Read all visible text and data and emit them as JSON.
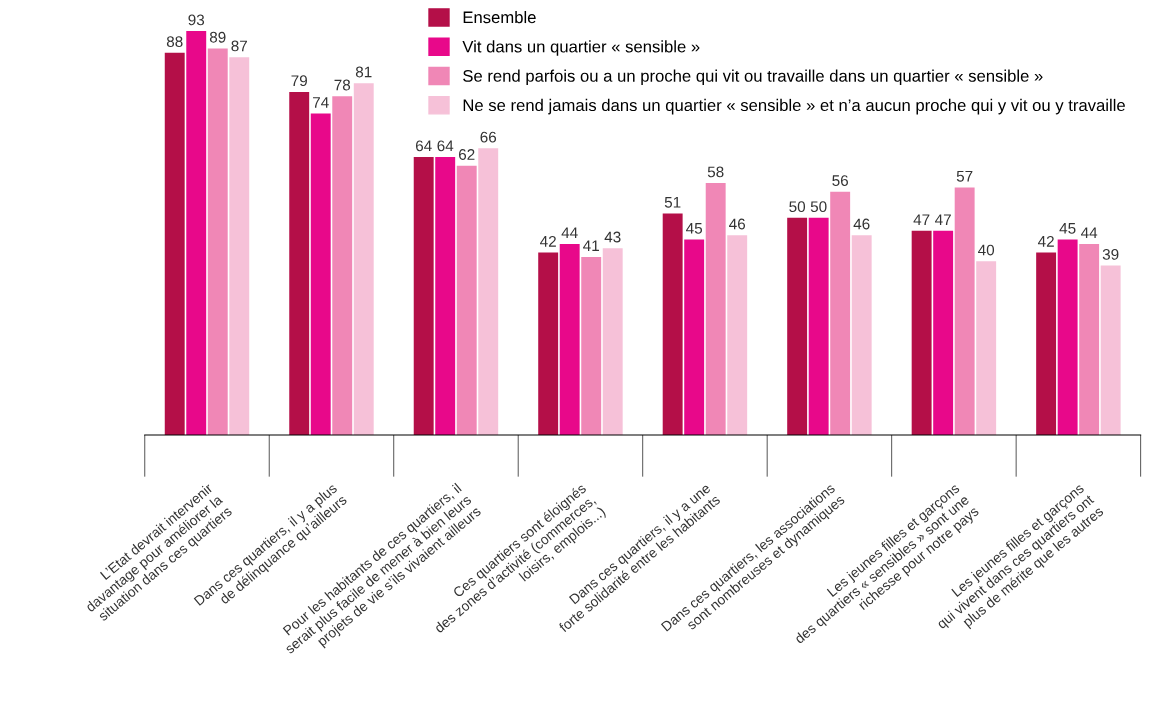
{
  "chart_data": {
    "type": "bar",
    "categories": [
      "L’Etat devrait intervenir\ndavantage pour améliorer la\nsituation dans ces quartiers",
      "Dans ces quartiers, il y a plus\nde délinquance qu’ailleurs",
      "Pour les habitants de ces quartiers, il\nserait plus facile de mener à bien leurs\nprojets de vie s’ils vivaient ailleurs",
      "Ces quartiers sont éloignés\ndes zones d’activité (commerces,\nloisirs, emplois...)",
      "Dans ces quartiers, il y a une\nforte solidarité entre les habitants",
      "Dans ces quartiers, les associations\nsont nombreuses et dynamiques",
      "Les jeunes filles et garçons\ndes quartiers « sensibles » sont une\nrichesse pour notre pays",
      "Les jeunes filles et garçons\nqui vivent dans ces quartiers ont\nplus de mérite que les autres"
    ],
    "series": [
      {
        "name": "Ensemble",
        "color": "#b40f48",
        "values": [
          88,
          79,
          64,
          42,
          51,
          50,
          47,
          42
        ]
      },
      {
        "name": "Vit dans un quartier « sensible »",
        "color": "#e8088a",
        "values": [
          93,
          74,
          64,
          44,
          45,
          50,
          47,
          45
        ]
      },
      {
        "name": "Se rend parfois ou a un proche qui vit ou travaille dans un quartier « sensible »",
        "color": "#f087b6",
        "values": [
          89,
          78,
          62,
          41,
          58,
          56,
          57,
          44
        ]
      },
      {
        "name": "Ne se rend jamais dans un quartier « sensible » et n’a aucun proche qui y vit ou y travaille",
        "color": "#f6c1d8",
        "values": [
          87,
          81,
          66,
          43,
          46,
          46,
          40,
          39
        ]
      }
    ],
    "data_labels": true,
    "tick_labels": "x",
    "legend": "top right",
    "grid": false
  }
}
